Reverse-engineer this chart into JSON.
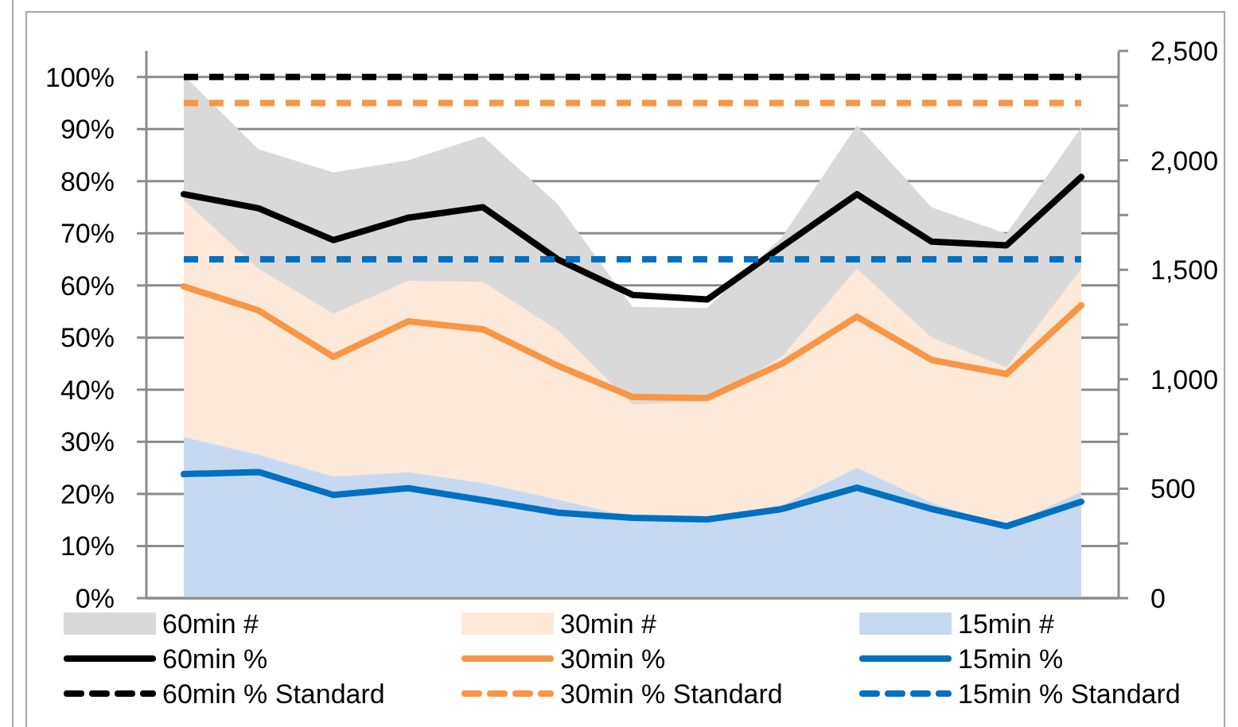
{
  "chart_data": {
    "type": "line",
    "categories": [
      null,
      null,
      null,
      null,
      null,
      null,
      null,
      null,
      null,
      null,
      null,
      null,
      null
    ],
    "series": [
      {
        "name": "60min #",
        "type": "area",
        "axis": "y2",
        "color": "#d9d9d9",
        "values": [
          2390,
          2050,
          1945,
          2000,
          2110,
          1800,
          1330,
          1325,
          1650,
          2160,
          1785,
          1665,
          2150
        ]
      },
      {
        "name": "30min #",
        "type": "area",
        "axis": "y2",
        "color": "#fde9d9",
        "values": [
          1820,
          1505,
          1300,
          1450,
          1445,
          1225,
          885,
          900,
          1105,
          1505,
          1190,
          1055,
          1505
        ]
      },
      {
        "name": "15min #",
        "type": "area",
        "axis": "y2",
        "color": "#c6d9f1",
        "values": [
          735,
          655,
          555,
          575,
          525,
          450,
          370,
          365,
          425,
          595,
          435,
          330,
          485
        ]
      },
      {
        "name": "60min %",
        "color": "#000000",
        "line_style": "solid",
        "values": [
          77.5,
          74.8,
          68.7,
          73,
          75,
          65,
          58.2,
          57.3,
          67.5,
          77.5,
          68.4,
          67.7,
          80.8
        ]
      },
      {
        "name": "30min %",
        "color": "#f79646",
        "line_style": "solid",
        "values": [
          59.8,
          55.2,
          46.3,
          53.1,
          51.6,
          44.6,
          38.6,
          38.4,
          45,
          54,
          45.7,
          43,
          56.2
        ]
      },
      {
        "name": "15min %",
        "color": "#0070c0",
        "line_style": "solid",
        "values": [
          23.8,
          24.2,
          19.8,
          21.1,
          18.8,
          16.4,
          15.4,
          15.1,
          17.1,
          21.2,
          17.1,
          13.8,
          18.5
        ]
      },
      {
        "name": "60min % Standard",
        "color": "#000000",
        "line_style": "dashed",
        "values": [
          100,
          100,
          100,
          100,
          100,
          100,
          100,
          100,
          100,
          100,
          100,
          100,
          100
        ]
      },
      {
        "name": "30min % Standard",
        "color": "#f79646",
        "line_style": "dashed",
        "values": [
          95,
          95,
          95,
          95,
          95,
          95,
          95,
          95,
          95,
          95,
          95,
          95,
          95
        ]
      },
      {
        "name": "15min % Standard",
        "color": "#0070c0",
        "line_style": "dashed",
        "values": [
          65,
          65,
          65,
          65,
          65,
          65,
          65,
          65,
          65,
          65,
          65,
          65,
          65
        ]
      }
    ],
    "ylim": [
      0,
      105
    ],
    "yticks": [
      {
        "value": 0,
        "label": "0%"
      },
      {
        "value": 10,
        "label": "10%"
      },
      {
        "value": 20,
        "label": "20%"
      },
      {
        "value": 30,
        "label": "30%"
      },
      {
        "value": 40,
        "label": "40%"
      },
      {
        "value": 50,
        "label": "50%"
      },
      {
        "value": 60,
        "label": "60%"
      },
      {
        "value": 70,
        "label": "70%"
      },
      {
        "value": 80,
        "label": "80%"
      },
      {
        "value": 90,
        "label": "90%"
      },
      {
        "value": 100,
        "label": "100%"
      }
    ],
    "y2lim": [
      0,
      2500
    ],
    "y2ticks": [
      0,
      {
        "value": 250,
        "label": null
      },
      500,
      {
        "value": 750,
        "label": null
      },
      {
        "value": 1000,
        "label": "1,000"
      },
      {
        "value": 1250,
        "label": null
      },
      {
        "value": 1500,
        "label": "1,500"
      },
      {
        "value": 1750,
        "label": null
      },
      {
        "value": 2000,
        "label": "2,000"
      },
      {
        "value": 2250,
        "label": null
      },
      {
        "value": 2500,
        "label": "2,500"
      }
    ],
    "grid": "y",
    "legend": "bottom"
  }
}
